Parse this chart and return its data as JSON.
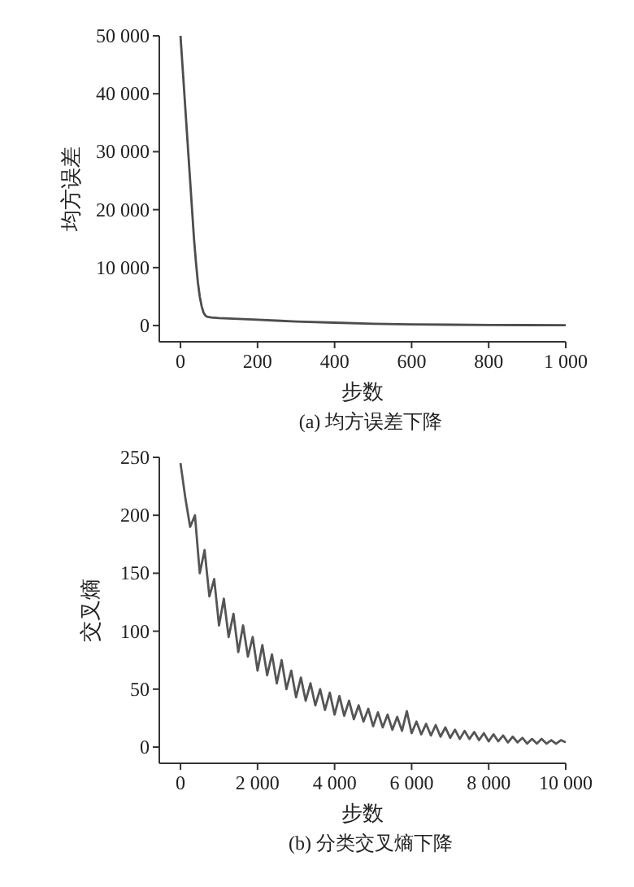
{
  "chart_data": [
    {
      "type": "line",
      "title": "(a) 均方误差下降",
      "xlabel": "步数",
      "ylabel": "均方误差",
      "color": "#4d4d4d",
      "x": [
        0,
        5,
        10,
        15,
        20,
        25,
        30,
        35,
        40,
        45,
        50,
        55,
        60,
        65,
        70,
        80,
        100,
        150,
        200,
        250,
        300,
        400,
        500,
        600,
        700,
        800,
        900,
        1000
      ],
      "values": [
        50000,
        45000,
        40000,
        35000,
        30000,
        25000,
        20000,
        15000,
        11000,
        7500,
        5000,
        3300,
        2200,
        1700,
        1500,
        1400,
        1300,
        1150,
        1000,
        850,
        700,
        500,
        300,
        200,
        150,
        100,
        80,
        50
      ],
      "xlim": [
        -55,
        1000
      ],
      "ylim": [
        -2800,
        50000
      ],
      "xticks": [
        0,
        200,
        400,
        600,
        800,
        {
          "value": 1000,
          "label": "1 000"
        }
      ],
      "yticks": [
        0,
        {
          "value": 10000,
          "label": "10 000"
        },
        {
          "value": 20000,
          "label": "20 000"
        },
        {
          "value": 30000,
          "label": "30 000"
        },
        {
          "value": 40000,
          "label": "40 000"
        },
        {
          "value": 50000,
          "label": "50 000"
        }
      ]
    },
    {
      "type": "line",
      "title": "(b) 分类交叉熵下降",
      "xlabel": "步数",
      "ylabel": "交叉熵",
      "color": "#555555",
      "x": [
        0,
        125,
        250,
        375,
        500,
        625,
        750,
        875,
        1000,
        1125,
        1250,
        1375,
        1500,
        1625,
        1750,
        1875,
        2000,
        2125,
        2250,
        2375,
        2500,
        2625,
        2750,
        2875,
        3000,
        3125,
        3250,
        3375,
        3500,
        3625,
        3750,
        3875,
        4000,
        4125,
        4250,
        4375,
        4500,
        4625,
        4750,
        4875,
        5000,
        5125,
        5250,
        5375,
        5500,
        5625,
        5750,
        5875,
        6000,
        6125,
        6250,
        6375,
        6500,
        6625,
        6750,
        6875,
        7000,
        7125,
        7250,
        7375,
        7500,
        7625,
        7750,
        7875,
        8000,
        8125,
        8250,
        8375,
        8500,
        8625,
        8750,
        8875,
        9000,
        9125,
        9250,
        9375,
        9500,
        9625,
        9750,
        9875,
        10000
      ],
      "values": [
        245,
        215,
        190,
        200,
        150,
        170,
        130,
        145,
        105,
        128,
        95,
        115,
        82,
        105,
        78,
        95,
        66,
        88,
        62,
        80,
        55,
        75,
        50,
        66,
        43,
        60,
        40,
        55,
        36,
        50,
        32,
        47,
        28,
        44,
        27,
        40,
        24,
        36,
        22,
        33,
        18,
        30,
        17,
        28,
        15,
        26,
        14,
        31,
        12,
        22,
        11,
        20,
        10,
        19,
        9,
        17,
        8,
        15,
        7,
        14,
        7,
        13,
        6,
        12,
        5,
        11,
        5,
        10,
        4,
        9,
        4,
        8,
        3,
        7,
        3,
        7,
        3,
        6,
        3,
        6,
        4
      ],
      "xlim": [
        -550,
        10000
      ],
      "ylim": [
        -14,
        250
      ],
      "xticks": [
        0,
        {
          "value": 2000,
          "label": "2 000"
        },
        {
          "value": 4000,
          "label": "4 000"
        },
        {
          "value": 6000,
          "label": "6 000"
        },
        {
          "value": 8000,
          "label": "8 000"
        },
        {
          "value": 10000,
          "label": "10 000"
        }
      ],
      "yticks": [
        0,
        50,
        100,
        150,
        200,
        250
      ]
    }
  ]
}
